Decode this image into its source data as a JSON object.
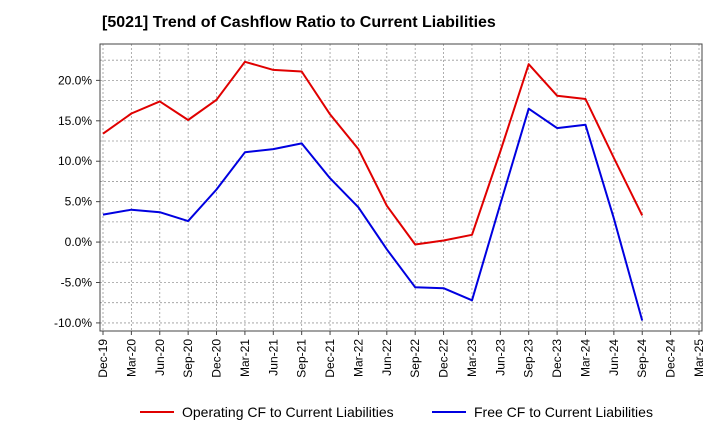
{
  "chart_data": {
    "type": "line",
    "title": "[5021]  Trend of Cashflow Ratio to Current Liabilities",
    "xlabel": "",
    "ylabel": "",
    "categories": [
      "Dec-19",
      "Mar-20",
      "Jun-20",
      "Sep-20",
      "Dec-20",
      "Mar-21",
      "Jun-21",
      "Sep-21",
      "Dec-21",
      "Mar-22",
      "Jun-22",
      "Sep-22",
      "Dec-22",
      "Mar-23",
      "Jun-23",
      "Sep-23",
      "Dec-23",
      "Mar-24",
      "Jun-24",
      "Sep-24",
      "Dec-24",
      "Mar-25"
    ],
    "ylim": [
      -11.0,
      24.5
    ],
    "yticks": [
      20.0,
      15.0,
      10.0,
      5.0,
      0.0,
      -5.0,
      -10.0
    ],
    "ytick_labels": [
      "20.0%",
      "15.0%",
      "10.0%",
      "5.0%",
      "0.0%",
      "-5.0%",
      "-10.0%"
    ],
    "grid": true,
    "legend_position": "bottom",
    "series": [
      {
        "name": "Operating CF to Current Liabilities",
        "color": "#e00000",
        "values": [
          13.4,
          15.9,
          17.4,
          15.1,
          17.6,
          22.3,
          21.3,
          21.1,
          15.8,
          11.5,
          4.5,
          -0.3,
          0.2,
          0.9,
          11.2,
          22.0,
          18.1,
          17.7,
          10.4,
          3.3,
          null,
          null
        ]
      },
      {
        "name": "Free CF to Current Liabilities",
        "color": "#0000e0",
        "values": [
          3.4,
          4.0,
          3.7,
          2.6,
          6.5,
          11.1,
          11.5,
          12.2,
          7.9,
          4.3,
          -0.9,
          -5.6,
          -5.7,
          -7.2,
          4.7,
          16.5,
          14.1,
          14.5,
          2.9,
          -9.7,
          null,
          null
        ]
      }
    ]
  }
}
